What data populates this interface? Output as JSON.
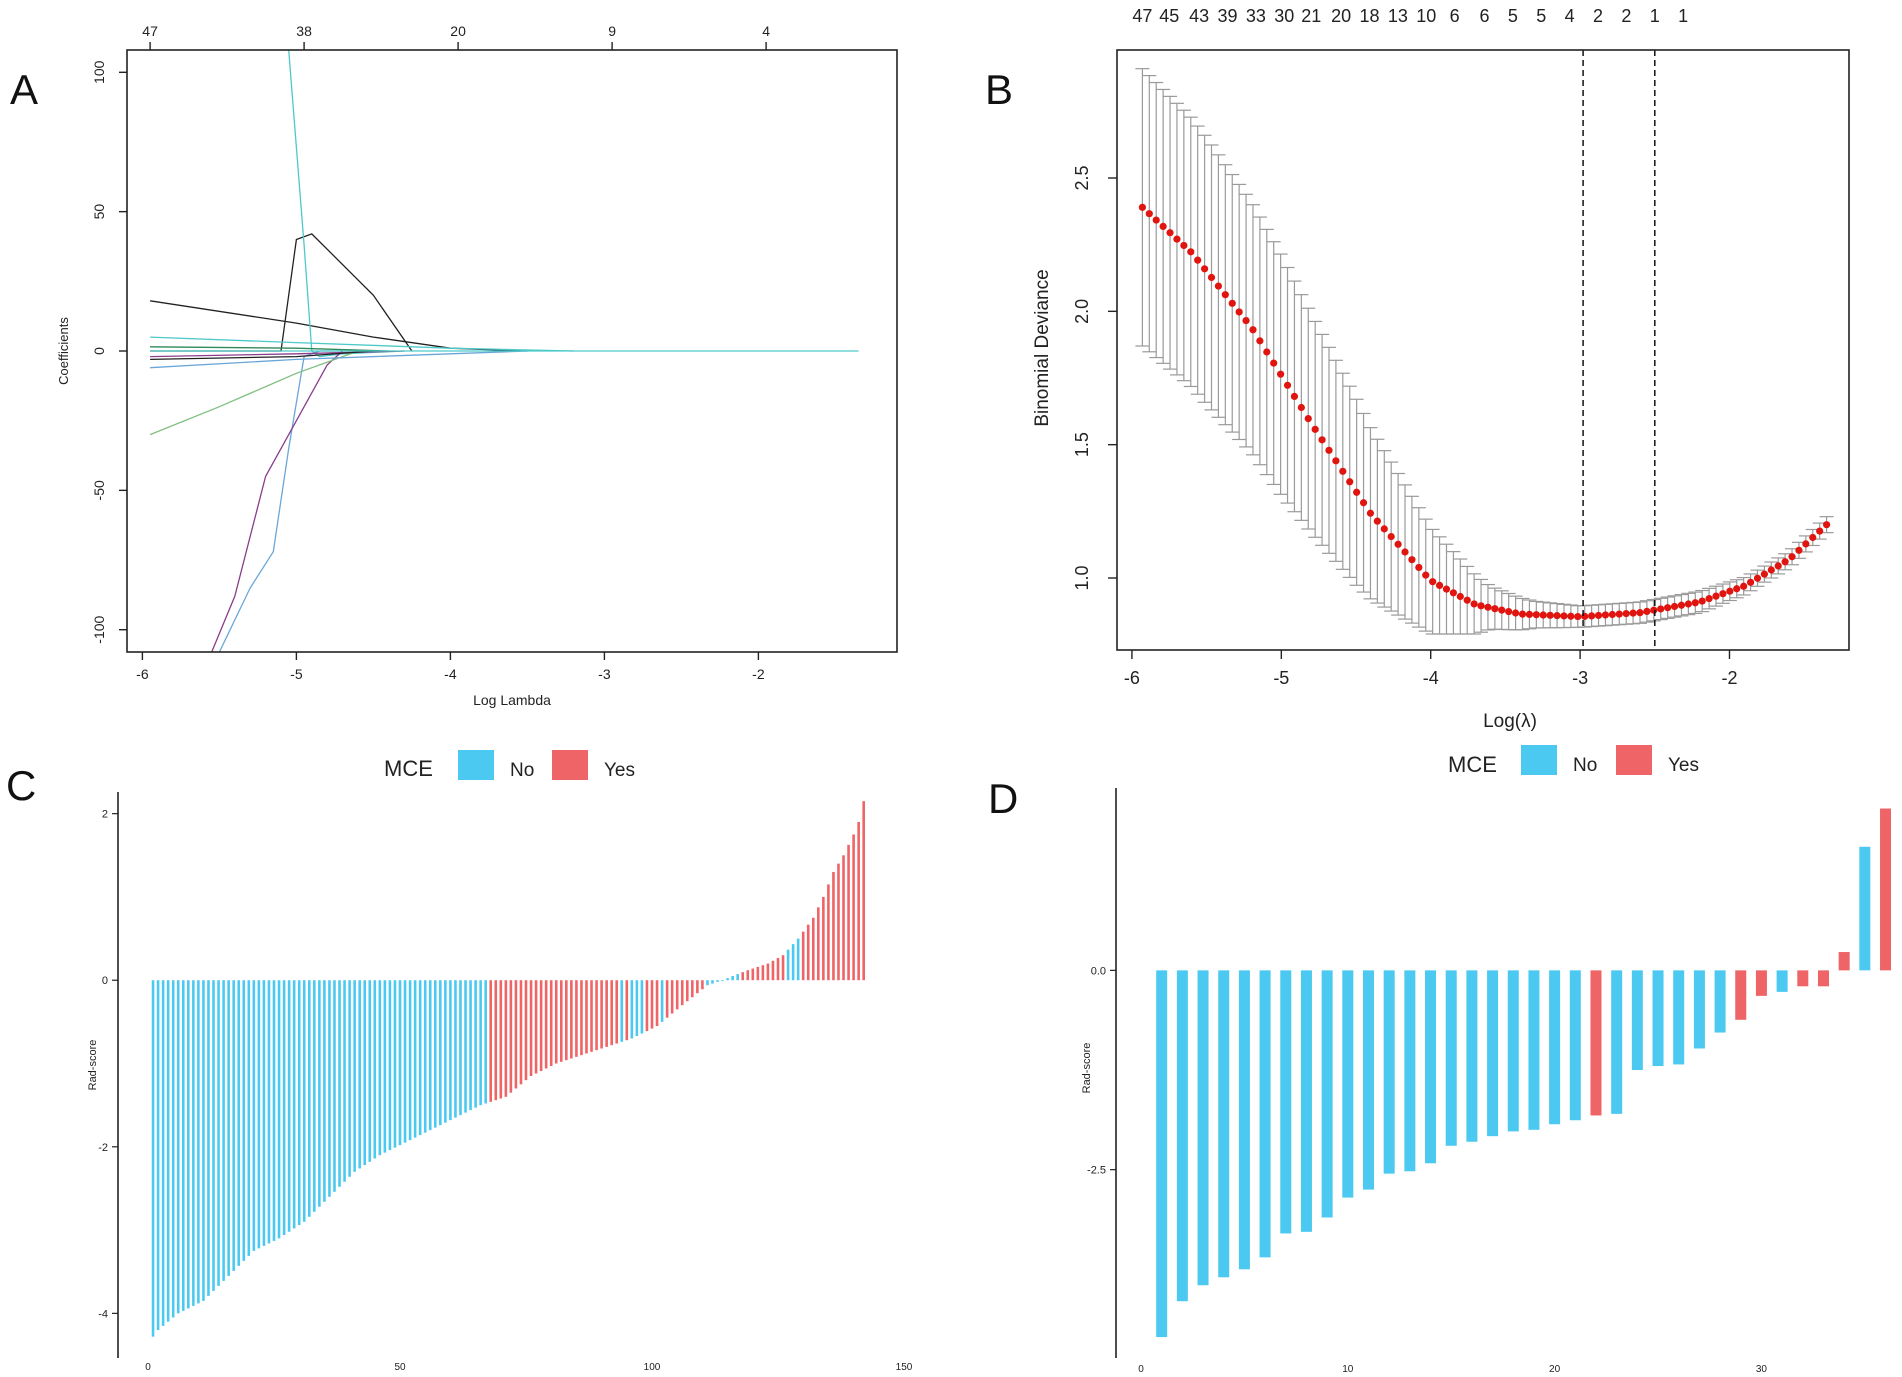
{
  "panels": {
    "A": {
      "letter": "A"
    },
    "B": {
      "letter": "B"
    },
    "C": {
      "letter": "C"
    },
    "D": {
      "letter": "D"
    }
  },
  "colors": {
    "no": "#4cc9f0",
    "yes": "#ef6466",
    "deviance_point": "#e0150f",
    "error_bar": "#9a9a9a"
  },
  "chart_data": [
    {
      "id": "A",
      "type": "line",
      "title": "",
      "xlabel": "Log Lambda",
      "ylabel": "Coefficients",
      "xlim": [
        -6.1,
        -1.1
      ],
      "ylim": [
        -108,
        108
      ],
      "xticks": [
        -6,
        -5,
        -4,
        -3,
        -2
      ],
      "yticks": [
        -100,
        -50,
        0,
        50,
        100
      ],
      "top_ticks": [
        {
          "x": -5.95,
          "label": "47"
        },
        {
          "x": -4.95,
          "label": "38"
        },
        {
          "x": -3.95,
          "label": "20"
        },
        {
          "x": -2.95,
          "label": "9"
        },
        {
          "x": -1.95,
          "label": "4"
        }
      ],
      "series": [
        {
          "name": "coef-1",
          "color": "#222222",
          "x": [
            -5.95,
            -5.0,
            -4.5,
            -4.0,
            -3.5
          ],
          "y": [
            18,
            10,
            5,
            1,
            0
          ]
        },
        {
          "name": "coef-2",
          "color": "#222222",
          "x": [
            -5.95,
            -5.1,
            -5.0,
            -4.9,
            -4.5,
            -4.25
          ],
          "y": [
            0,
            0,
            40,
            42,
            20,
            0
          ]
        },
        {
          "name": "coef-3",
          "color": "#4ec9c9",
          "x": [
            -5.05,
            -4.95,
            -4.9,
            -4.85,
            -4.7,
            -4.3
          ],
          "y": [
            108,
            38,
            0,
            -2,
            -1,
            0
          ]
        },
        {
          "name": "coef-4",
          "color": "#6aa6d8",
          "x": [
            -5.5,
            -5.3,
            -5.15,
            -5.05,
            -4.95,
            -4.85,
            -4.7
          ],
          "y": [
            -108,
            -85,
            -72,
            -35,
            -2,
            0,
            0
          ]
        },
        {
          "name": "coef-5",
          "color": "#8a3d8a",
          "x": [
            -5.55,
            -5.4,
            -5.2,
            -5.0,
            -4.8,
            -4.7
          ],
          "y": [
            -108,
            -88,
            -45,
            -25,
            -5,
            0
          ]
        },
        {
          "name": "coef-6",
          "color": "#7fbf7f",
          "x": [
            -5.95,
            -5.5,
            -5.0,
            -4.7,
            -4.6
          ],
          "y": [
            -30,
            -20,
            -8,
            -2,
            0
          ]
        },
        {
          "name": "coef-7",
          "color": "#4ec9c9",
          "x": [
            -5.95,
            -5.0,
            -4.0,
            -3.2
          ],
          "y": [
            5,
            3,
            1,
            0
          ]
        },
        {
          "name": "coef-8",
          "color": "#6aa6d8",
          "x": [
            -5.95,
            -5.0,
            -4.0,
            -3.5
          ],
          "y": [
            -6,
            -3,
            -1,
            0
          ]
        },
        {
          "name": "coef-9",
          "color": "#8a3d8a",
          "x": [
            -5.95,
            -5.0,
            -4.3
          ],
          "y": [
            -2,
            -1,
            0
          ]
        },
        {
          "name": "coef-10",
          "color": "#2e8b57",
          "x": [
            -5.95,
            -5.0,
            -4.4
          ],
          "y": [
            1.5,
            1,
            0
          ]
        },
        {
          "name": "coef-11",
          "color": "#222222",
          "x": [
            -5.95,
            -5.0,
            -4.5
          ],
          "y": [
            -3,
            -2,
            0
          ]
        },
        {
          "name": "coef-12",
          "color": "#4ec9c9",
          "x": [
            -5.95,
            -4.0,
            -3.0,
            -1.35
          ],
          "y": [
            0,
            0,
            0,
            0
          ]
        }
      ]
    },
    {
      "id": "B",
      "type": "scatter",
      "title": "",
      "xlabel": "Log(λ)",
      "ylabel": "Binomial Deviance",
      "xlim": [
        -6.1,
        -1.2
      ],
      "ylim": [
        0.73,
        2.98
      ],
      "xticks": [
        -6,
        -5,
        -4,
        -3,
        -2
      ],
      "yticks": [
        1.0,
        1.5,
        2.0,
        2.5
      ],
      "vlines": [
        -2.98,
        -2.5
      ],
      "top_labels": [
        "47",
        "45",
        "43",
        "39",
        "33",
        "30",
        "21",
        "20",
        "18",
        "13",
        "10",
        "6",
        "6",
        "5",
        "5",
        "4",
        "2",
        "2",
        "1",
        "1"
      ],
      "top_label_x": [
        -5.93,
        -5.75,
        -5.55,
        -5.36,
        -5.17,
        -4.98,
        -4.8,
        -4.6,
        -4.41,
        -4.22,
        -4.03,
        -3.84,
        -3.64,
        -3.45,
        -3.26,
        -3.07,
        -2.88,
        -2.69,
        -2.5,
        -2.31
      ],
      "x_start": -5.93,
      "x_end": -1.35,
      "n_points": 100,
      "curve_x": [
        -5.93,
        -5.6,
        -5.2,
        -4.8,
        -4.4,
        -4.0,
        -3.7,
        -3.4,
        -3.0,
        -2.6,
        -2.2,
        -1.9,
        -1.6,
        -1.35
      ],
      "curve_y": [
        2.39,
        2.22,
        1.94,
        1.58,
        1.24,
        0.99,
        0.9,
        0.865,
        0.855,
        0.87,
        0.91,
        0.97,
        1.07,
        1.2
      ],
      "se_x": [
        -5.93,
        -5.5,
        -5.0,
        -4.5,
        -4.0,
        -3.6,
        -3.3,
        -3.0,
        -2.6,
        -2.2,
        -1.8,
        -1.35
      ],
      "se_y": [
        0.52,
        0.5,
        0.45,
        0.35,
        0.2,
        0.08,
        0.05,
        0.04,
        0.04,
        0.04,
        0.03,
        0.03
      ]
    },
    {
      "id": "C",
      "type": "bar",
      "title": "",
      "xlabel": "",
      "ylabel": "Rad-score",
      "legend": {
        "title": "MCE",
        "entries": [
          "No",
          "Yes"
        ],
        "position": "top-center"
      },
      "xlim": [
        0,
        150
      ],
      "ylim": [
        -4.5,
        2.2
      ],
      "xticks": [
        0,
        50,
        100,
        150
      ],
      "yticks": [
        -4,
        -2,
        0,
        2
      ],
      "n": 142,
      "anchor_index": [
        0,
        1,
        5,
        10,
        15,
        20,
        25,
        30,
        35,
        40,
        45,
        50,
        55,
        60,
        65,
        70,
        75,
        80,
        85,
        90,
        95,
        100,
        105,
        110,
        113,
        115,
        118,
        122,
        125,
        128,
        131,
        133,
        135,
        137,
        139,
        140,
        141
      ],
      "anchor_value": [
        -4.28,
        -4.2,
        -4.0,
        -3.85,
        -3.55,
        -3.25,
        -3.1,
        -2.9,
        -2.6,
        -2.3,
        -2.1,
        -1.95,
        -1.8,
        -1.65,
        -1.5,
        -1.4,
        -1.15,
        -1.0,
        -0.9,
        -0.8,
        -0.7,
        -0.55,
        -0.3,
        -0.06,
        0.0,
        0.05,
        0.12,
        0.2,
        0.3,
        0.5,
        0.75,
        1.0,
        1.3,
        1.5,
        1.75,
        1.9,
        2.15
      ],
      "yes_indices": [
        67,
        68,
        69,
        70,
        71,
        72,
        73,
        74,
        75,
        76,
        77,
        78,
        79,
        80,
        81,
        82,
        83,
        84,
        85,
        86,
        87,
        88,
        89,
        90,
        91,
        92,
        94,
        98,
        99,
        100,
        102,
        103,
        104,
        105,
        106,
        107,
        108,
        109,
        117,
        118,
        119,
        120,
        121,
        122,
        123,
        124,
        125,
        129,
        130,
        131,
        132,
        133,
        134,
        135,
        136,
        137,
        138,
        139,
        140,
        141
      ]
    },
    {
      "id": "D",
      "type": "bar",
      "title": "",
      "xlabel": "",
      "ylabel": "Rad-score",
      "legend": {
        "title": "MCE",
        "entries": [
          "No",
          "Yes"
        ],
        "position": "top-center"
      },
      "xlim": [
        0,
        36.7
      ],
      "ylim": [
        -4.9,
        2.3
      ],
      "xticks": [
        0,
        10,
        20,
        30
      ],
      "yticks": [
        -2.5,
        0.0
      ],
      "ytick_labels": [
        "-2.5",
        "0.0"
      ],
      "categories": [
        1,
        2,
        3,
        4,
        5,
        6,
        7,
        8,
        9,
        10,
        11,
        12,
        13,
        14,
        15,
        16,
        17,
        18,
        19,
        20,
        21,
        22,
        23,
        24,
        25,
        26,
        27,
        28,
        29,
        30,
        31,
        32,
        33,
        34,
        35,
        36
      ],
      "values": [
        -4.6,
        -4.15,
        -3.95,
        -3.85,
        -3.75,
        -3.6,
        -3.3,
        -3.28,
        -3.1,
        -2.85,
        -2.75,
        -2.55,
        -2.52,
        -2.42,
        -2.2,
        -2.15,
        -2.08,
        -2.02,
        -2.0,
        -1.93,
        -1.88,
        -1.82,
        -1.8,
        -1.25,
        -1.2,
        -1.18,
        -0.98,
        -0.78,
        -0.62,
        -0.32,
        -0.27,
        -0.2,
        -0.2,
        0.23,
        1.55,
        2.03
      ],
      "groups": [
        "No",
        "No",
        "No",
        "No",
        "No",
        "No",
        "No",
        "No",
        "No",
        "No",
        "No",
        "No",
        "No",
        "No",
        "No",
        "No",
        "No",
        "No",
        "No",
        "No",
        "No",
        "Yes",
        "No",
        "No",
        "No",
        "No",
        "No",
        "No",
        "Yes",
        "Yes",
        "No",
        "Yes",
        "Yes",
        "Yes",
        "No",
        "Yes"
      ]
    }
  ]
}
